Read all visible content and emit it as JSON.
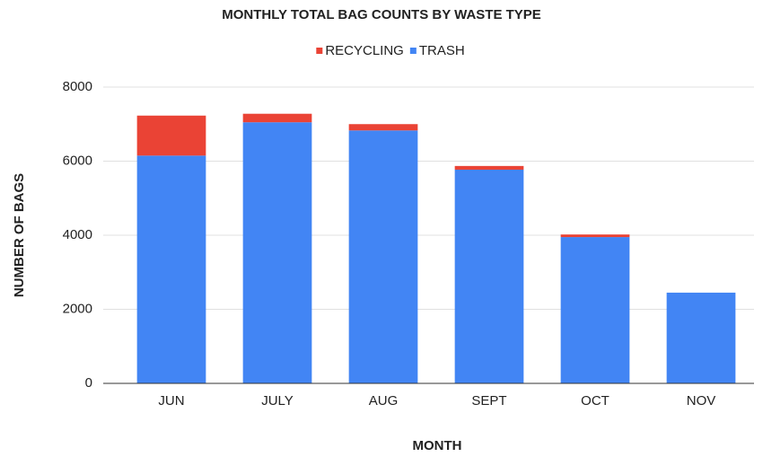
{
  "chart_data": {
    "type": "stacked_bar",
    "title": "MONTHLY TOTAL BAG COUNTS BY WASTE TYPE",
    "xlabel": "MONTH",
    "ylabel": "NUMBER OF BAGS",
    "categories": [
      "JUN",
      "JULY",
      "AUG",
      "SEPT",
      "OCT",
      "NOV"
    ],
    "series": [
      {
        "name": "RECYCLING",
        "color": "#ea4335",
        "values": [
          1080,
          230,
          170,
          100,
          70,
          0
        ]
      },
      {
        "name": "TRASH",
        "color": "#4285f4",
        "values": [
          6150,
          7050,
          6830,
          5770,
          3950,
          2450
        ]
      }
    ],
    "ylim": [
      0,
      8000
    ],
    "yticks": [
      0,
      2000,
      4000,
      6000,
      8000
    ],
    "grid": true,
    "legend": "top"
  }
}
